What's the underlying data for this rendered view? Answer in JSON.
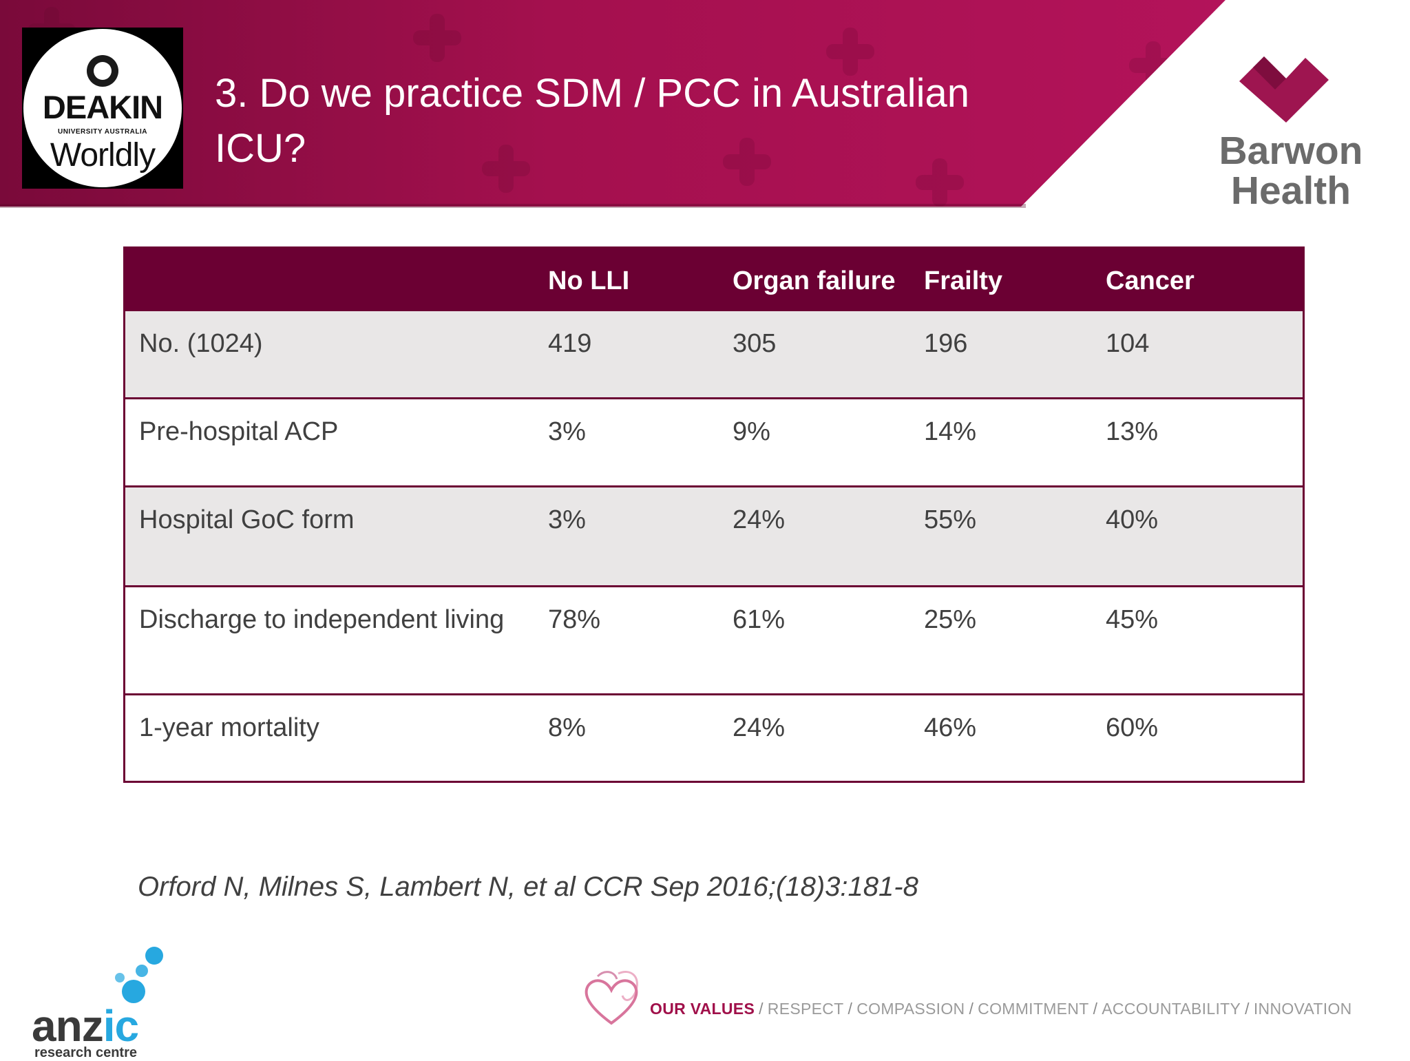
{
  "slide": {
    "title": "3. Do we practice SDM / PCC in Australian ICU?",
    "citation": "Orford N, Milnes S, Lambert N, et al CCR Sep 2016;(18)3:181-8"
  },
  "logos": {
    "deakin": {
      "name": "DEAKIN",
      "sub": "UNIVERSITY AUSTRALIA",
      "tagline": "Worldly"
    },
    "barwon": {
      "name": "Barwon\nHealth",
      "heart_color": "#9e1550"
    },
    "anzic": {
      "name_dark": "anz",
      "name_blue": "ic",
      "sub": "research centre",
      "dot_color": "#27a8e0"
    },
    "values": {
      "label": "OUR VALUES",
      "slash": "/",
      "items": [
        "RESPECT",
        "COMPASSION",
        "COMMITMENT",
        "ACCOUNTABILITY",
        "INNOVATION"
      ]
    }
  },
  "table": {
    "headers": [
      "",
      "No LLI",
      "Organ failure",
      "Frailty",
      "Cancer"
    ],
    "rows": [
      {
        "label": "No. (1024)",
        "values": [
          "419",
          "305",
          "196",
          "104"
        ]
      },
      {
        "label": "Pre-hospital ACP",
        "values": [
          "3%",
          "9%",
          "14%",
          "13%"
        ]
      },
      {
        "label": "Hospital GoC form",
        "values": [
          "3%",
          "24%",
          "55%",
          "40%"
        ]
      },
      {
        "label": "Discharge to independent living",
        "values": [
          "78%",
          "61%",
          "25%",
          "45%"
        ]
      },
      {
        "label": "1-year mortality",
        "values": [
          "8%",
          "24%",
          "46%",
          "60%"
        ]
      }
    ]
  },
  "colors": {
    "banner": "#a4104e",
    "table_header": "#6b0033",
    "row_shade": "#e9e7e7",
    "text": "#404040"
  }
}
